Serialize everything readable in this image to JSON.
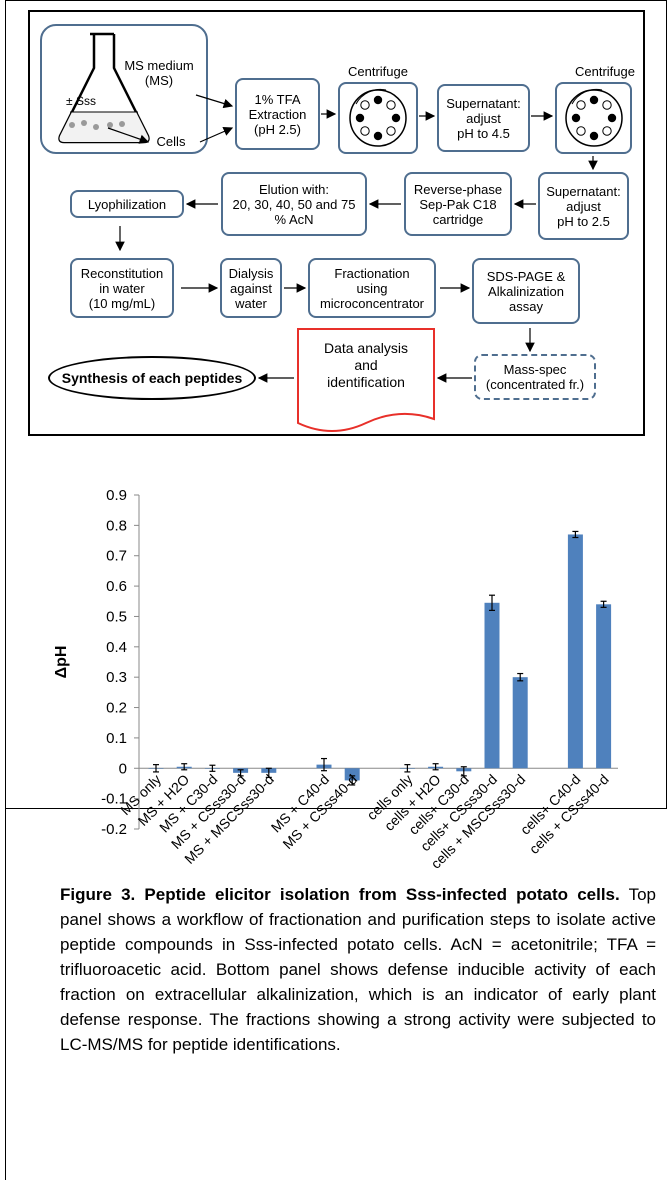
{
  "workflow": {
    "flask_label": "± Sss",
    "ms_medium": "MS medium\n(MS)",
    "cells": "Cells",
    "tfa_extraction": "1% TFA\nExtraction\n(pH 2.5)",
    "centrifuge1": "Centrifuge",
    "supernatant_ph45": "Supernatant:\nadjust\npH to 4.5",
    "centrifuge2": "Centrifuge",
    "supernatant_ph25": "Supernatant:\nadjust\npH to 2.5",
    "reverse_phase": "Reverse-phase\nSep-Pak C18\ncartridge",
    "elution": "Elution with:\n20, 30, 40, 50 and 75\n% AcN",
    "lyophilization": "Lyophilization",
    "reconstitution": "Reconstitution\nin water\n(10 mg/mL)",
    "dialysis": "Dialysis\nagainst\nwater",
    "fractionation": "Fractionation\nusing\nmicroconcentrator",
    "sds_page": "SDS-PAGE &\nAlkalinization\nassay",
    "mass_spec": "Mass-spec\n(concentrated fr.)",
    "data_analysis": "Data analysis\nand\nidentification",
    "synthesis": "Synthesis of each peptides",
    "box_border_color": "#4f6e8f",
    "doc_border_color": "#e8302a"
  },
  "chart_data": {
    "type": "bar",
    "ylabel": "ΔpH",
    "ylim": [
      -0.2,
      0.9
    ],
    "yticks": [
      "0.9",
      "0.8",
      "0.7",
      "0.6",
      "0.5",
      "0.4",
      "0.3",
      "0.2",
      "0.1",
      "0",
      "-0.1",
      "-0.2"
    ],
    "bar_color": "#4f81bd",
    "categories": [
      "MS only",
      "MS + H2O",
      "MS + C30-d",
      "MS + CSss30-d",
      "MS + MSCSss30-d",
      "MS + C40-d",
      "MS + CSss40-d",
      "cells only",
      "cells + H2O",
      "cells+ C30-d",
      "cells+ CSss30-d",
      "cells + MSCSss30-d",
      "cells+ C40-d",
      "cells + CSss40-d"
    ],
    "groups": [
      0,
      0,
      0,
      0,
      0,
      1,
      1,
      2,
      2,
      2,
      2,
      2,
      3,
      3
    ],
    "values": [
      0.0,
      0.005,
      0.0,
      -0.015,
      -0.015,
      0.012,
      -0.04,
      0.0,
      0.005,
      -0.01,
      0.545,
      0.3,
      0.77,
      0.54
    ],
    "errors": [
      0.012,
      0.01,
      0.01,
      0.01,
      0.015,
      0.02,
      0.015,
      0.012,
      0.01,
      0.015,
      0.025,
      0.012,
      0.01,
      0.01
    ]
  },
  "caption": {
    "title": "Figure 3. Peptide elicitor isolation from Sss-infected potato cells.",
    "body": " Top panel shows a workflow of fractionation and purification steps to isolate active peptide compounds in Sss-infected potato cells. AcN = acetonitrile; TFA = trifluoroacetic acid. Bottom panel shows defense inducible activity of each fraction on extracellular alkalinization, which is an indicator of early plant defense response. The fractions showing a strong activity were subjected to LC-MS/MS for peptide identifications."
  }
}
